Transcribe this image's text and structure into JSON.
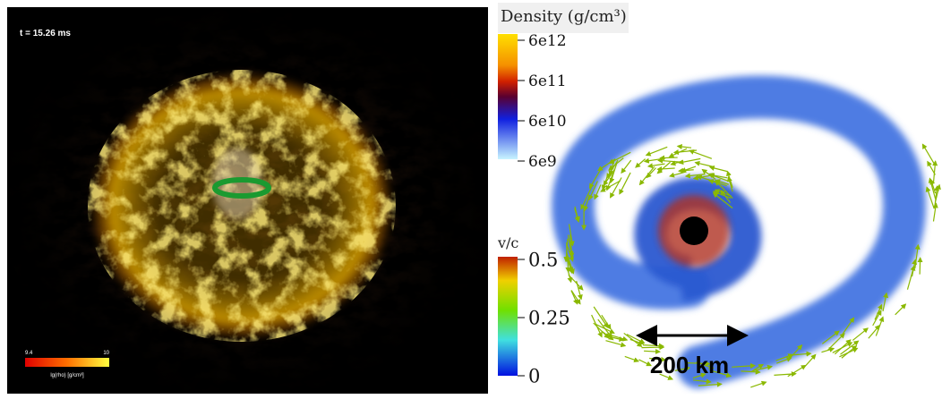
{
  "left_panel": {
    "time_label": "t = 15.26 ms",
    "colorbar": {
      "min_label": "9.4",
      "max_label": "10",
      "label": "lg(rho) [g/cm³]"
    }
  },
  "right_panel": {
    "density_colorbar": {
      "title": "Density (g/cm³)",
      "ticks": [
        "6e12",
        "6e11",
        "6e10",
        "6e9"
      ]
    },
    "velocity_colorbar": {
      "title": "v/c",
      "ticks": [
        "0.5",
        "0.25",
        "0"
      ]
    },
    "scale_bar": "200 km"
  }
}
